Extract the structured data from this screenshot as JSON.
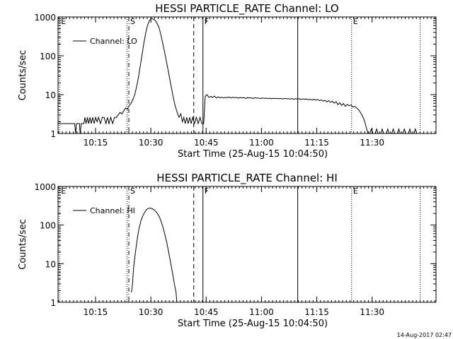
{
  "chart_data": [
    {
      "type": "line",
      "title": "HESSI PARTICLE_RATE Channel: LO",
      "xlabel": "Start Time (25-Aug-15 10:04:50)",
      "ylabel": "Counts/sec",
      "yscale": "log",
      "ylim": [
        1,
        1000
      ],
      "xlim_minutes": [
        0,
        102.5
      ],
      "x_ticks": [
        {
          "min": 10.17,
          "label": "10:15"
        },
        {
          "min": 25.17,
          "label": "10:30"
        },
        {
          "min": 40.17,
          "label": "10:45"
        },
        {
          "min": 55.17,
          "label": "11:00"
        },
        {
          "min": 70.17,
          "label": "11:15"
        },
        {
          "min": 85.17,
          "label": "11:30"
        }
      ],
      "y_ticks": [
        {
          "v": 1,
          "label": "1"
        },
        {
          "v": 10,
          "label": "10"
        },
        {
          "v": 100,
          "label": "100"
        },
        {
          "v": 1000,
          "label": "1000"
        }
      ],
      "markers": [
        {
          "min": 0.4,
          "style": "dotted",
          "label": "E"
        },
        {
          "min": 18.7,
          "style": "dotted",
          "label": ""
        },
        {
          "min": 19.2,
          "style": "dashdot",
          "label": "S"
        },
        {
          "min": 36.8,
          "style": "dashed",
          "label": ""
        },
        {
          "min": 39.3,
          "style": "solid",
          "label": "F"
        },
        {
          "min": 65.0,
          "style": "solid",
          "label": ""
        },
        {
          "min": 79.6,
          "style": "dotted",
          "label": "E"
        },
        {
          "min": 98.2,
          "style": "dotted",
          "label": ""
        }
      ],
      "legend": {
        "label": "Channel: LO",
        "position": "top-left"
      },
      "series": [
        {
          "values": [
            [
              0.0,
              1.8
            ],
            [
              4.5,
              1.8
            ],
            [
              4.8,
              1.0
            ],
            [
              5.0,
              1.8
            ],
            [
              5.8,
              1.8
            ],
            [
              6.0,
              1.0
            ],
            [
              6.3,
              1.8
            ],
            [
              7.0,
              1.8
            ],
            [
              7.3,
              2.6
            ],
            [
              7.6,
              1.8
            ],
            [
              8.0,
              2.6
            ],
            [
              8.3,
              1.8
            ],
            [
              8.7,
              2.6
            ],
            [
              9.0,
              1.8
            ],
            [
              9.4,
              2.6
            ],
            [
              9.8,
              1.8
            ],
            [
              10.2,
              2.6
            ],
            [
              10.6,
              2.0
            ],
            [
              11.0,
              2.6
            ],
            [
              11.5,
              1.8
            ],
            [
              12.0,
              2.6
            ],
            [
              12.5,
              2.6
            ],
            [
              13.0,
              1.8
            ],
            [
              13.4,
              2.6
            ],
            [
              13.8,
              1.8
            ],
            [
              14.3,
              2.6
            ],
            [
              14.8,
              1.8
            ],
            [
              15.3,
              2.6
            ],
            [
              15.8,
              2.6
            ],
            [
              16.3,
              3.0
            ],
            [
              16.8,
              3.5
            ],
            [
              17.3,
              3.2
            ],
            [
              17.8,
              3.8
            ],
            [
              18.3,
              4.5
            ],
            [
              18.8,
              4.2
            ],
            [
              19.3,
              5.2
            ],
            [
              19.8,
              6.0
            ],
            [
              20.3,
              7.5
            ],
            [
              20.8,
              10
            ],
            [
              21.3,
              16
            ],
            [
              21.8,
              28
            ],
            [
              22.3,
              55
            ],
            [
              22.8,
              110
            ],
            [
              23.3,
              220
            ],
            [
              23.8,
              400
            ],
            [
              24.3,
              620
            ],
            [
              24.8,
              800
            ],
            [
              25.3,
              920
            ],
            [
              25.8,
              880
            ],
            [
              26.3,
              820
            ],
            [
              26.8,
              700
            ],
            [
              27.3,
              560
            ],
            [
              27.8,
              380
            ],
            [
              28.3,
              230
            ],
            [
              28.8,
              140
            ],
            [
              29.3,
              80
            ],
            [
              29.8,
              45
            ],
            [
              30.3,
              25
            ],
            [
              30.8,
              14
            ],
            [
              31.3,
              8
            ],
            [
              31.8,
              5
            ],
            [
              32.3,
              3.5
            ],
            [
              32.8,
              2.6
            ],
            [
              33.3,
              3.2
            ],
            [
              33.7,
              2.0
            ],
            [
              34.1,
              2.6
            ],
            [
              34.5,
              1.8
            ],
            [
              34.9,
              2.6
            ],
            [
              35.3,
              1.8
            ],
            [
              35.7,
              2.6
            ],
            [
              36.1,
              1.8
            ],
            [
              36.5,
              2.6
            ],
            [
              37.0,
              1.8
            ],
            [
              37.5,
              2.6
            ],
            [
              38.0,
              1.8
            ],
            [
              38.5,
              2.6
            ],
            [
              39.0,
              1.8
            ],
            [
              39.5,
              1.8
            ],
            [
              39.9,
              9
            ],
            [
              40.4,
              10
            ],
            [
              40.9,
              8.5
            ],
            [
              41.4,
              9
            ],
            [
              41.9,
              8.5
            ],
            [
              42.4,
              9.2
            ],
            [
              42.9,
              8.2
            ],
            [
              43.4,
              8.8
            ],
            [
              43.9,
              8.3
            ],
            [
              44.4,
              8.6
            ],
            [
              44.9,
              8.2
            ],
            [
              45.4,
              8.5
            ],
            [
              45.9,
              8.4
            ],
            [
              46.4,
              8.7
            ],
            [
              46.9,
              8.2
            ],
            [
              47.4,
              8.6
            ],
            [
              47.9,
              8.3
            ],
            [
              48.4,
              8.5
            ],
            [
              48.9,
              8.1
            ],
            [
              49.4,
              8.5
            ],
            [
              49.9,
              8.2
            ],
            [
              50.4,
              8.4
            ],
            [
              50.9,
              8.0
            ],
            [
              51.4,
              8.4
            ],
            [
              51.9,
              8.2
            ],
            [
              52.4,
              8.3
            ],
            [
              52.9,
              8.0
            ],
            [
              53.4,
              8.3
            ],
            [
              53.9,
              8.1
            ],
            [
              54.4,
              8.2
            ],
            [
              54.9,
              7.9
            ],
            [
              55.4,
              8.2
            ],
            [
              55.9,
              8.0
            ],
            [
              56.4,
              8.1
            ],
            [
              56.9,
              7.9
            ],
            [
              57.4,
              8.1
            ],
            [
              57.9,
              7.8
            ],
            [
              58.4,
              8.1
            ],
            [
              58.9,
              7.9
            ],
            [
              59.4,
              8.0
            ],
            [
              59.9,
              7.8
            ],
            [
              60.4,
              8.0
            ],
            [
              60.9,
              7.7
            ],
            [
              61.4,
              8.0
            ],
            [
              61.9,
              7.8
            ],
            [
              62.4,
              7.9
            ],
            [
              62.9,
              7.7
            ],
            [
              63.4,
              7.9
            ],
            [
              63.9,
              7.6
            ],
            [
              64.4,
              7.9
            ],
            [
              64.9,
              7.7
            ],
            [
              65.4,
              7.8
            ],
            [
              65.9,
              7.5
            ],
            [
              66.4,
              7.8
            ],
            [
              66.9,
              7.6
            ],
            [
              67.4,
              7.7
            ],
            [
              67.9,
              7.4
            ],
            [
              68.4,
              7.6
            ],
            [
              68.9,
              7.3
            ],
            [
              69.4,
              7.6
            ],
            [
              69.9,
              7.2
            ],
            [
              70.4,
              7.5
            ],
            [
              70.9,
              7.0
            ],
            [
              71.4,
              7.3
            ],
            [
              71.9,
              6.8
            ],
            [
              72.4,
              7.1
            ],
            [
              72.9,
              6.5
            ],
            [
              73.4,
              7.0
            ],
            [
              73.9,
              6.3
            ],
            [
              74.4,
              6.8
            ],
            [
              74.9,
              6.0
            ],
            [
              75.4,
              6.6
            ],
            [
              75.9,
              5.5
            ],
            [
              76.4,
              6.2
            ],
            [
              76.9,
              5.3
            ],
            [
              77.4,
              5.9
            ],
            [
              77.9,
              5.0
            ],
            [
              78.4,
              5.6
            ],
            [
              78.9,
              5.2
            ],
            [
              79.4,
              5.4
            ],
            [
              79.9,
              4.8
            ],
            [
              80.4,
              5.0
            ],
            [
              80.9,
              4.6
            ],
            [
              81.4,
              4.2
            ],
            [
              81.9,
              3.6
            ],
            [
              82.4,
              3.0
            ],
            [
              82.9,
              2.4
            ],
            [
              83.3,
              1.8
            ],
            [
              83.7,
              1.3
            ],
            [
              84.1,
              1.0
            ],
            [
              84.5,
              1.0
            ],
            [
              85.0,
              1.3
            ],
            [
              85.4,
              1.0
            ],
            [
              86.0,
              1.0
            ],
            [
              86.4,
              1.3
            ],
            [
              86.8,
              1.0
            ],
            [
              87.5,
              1.0
            ],
            [
              87.9,
              1.3
            ],
            [
              88.3,
              1.0
            ],
            [
              89.0,
              1.0
            ],
            [
              89.4,
              1.3
            ],
            [
              89.8,
              1.0
            ],
            [
              90.5,
              1.0
            ],
            [
              90.9,
              1.3
            ],
            [
              91.3,
              1.0
            ],
            [
              92.0,
              1.0
            ],
            [
              92.4,
              1.3
            ],
            [
              92.8,
              1.0
            ],
            [
              93.5,
              1.0
            ],
            [
              93.9,
              1.3
            ],
            [
              94.3,
              1.0
            ],
            [
              95.0,
              1.0
            ],
            [
              95.4,
              1.3
            ],
            [
              95.8,
              1.0
            ],
            [
              96.5,
              1.0
            ],
            [
              96.9,
              1.3
            ],
            [
              97.3,
              1.0
            ],
            [
              98.5,
              1.0
            ]
          ]
        }
      ]
    },
    {
      "type": "line",
      "title": "HESSI PARTICLE_RATE Channel: HI",
      "xlabel": "Start Time (25-Aug-15 10:04:50)",
      "ylabel": "Counts/sec",
      "yscale": "log",
      "ylim": [
        1,
        1000
      ],
      "xlim_minutes": [
        0,
        102.5
      ],
      "x_ticks": [
        {
          "min": 10.17,
          "label": "10:15"
        },
        {
          "min": 25.17,
          "label": "10:30"
        },
        {
          "min": 40.17,
          "label": "10:45"
        },
        {
          "min": 55.17,
          "label": "11:00"
        },
        {
          "min": 70.17,
          "label": "11:15"
        },
        {
          "min": 85.17,
          "label": "11:30"
        }
      ],
      "y_ticks": [
        {
          "v": 1,
          "label": "1"
        },
        {
          "v": 10,
          "label": "10"
        },
        {
          "v": 100,
          "label": "100"
        },
        {
          "v": 1000,
          "label": "1000"
        }
      ],
      "markers": [
        {
          "min": 0.4,
          "style": "dotted",
          "label": "E"
        },
        {
          "min": 18.7,
          "style": "dotted",
          "label": ""
        },
        {
          "min": 19.2,
          "style": "dashdot",
          "label": "S"
        },
        {
          "min": 36.8,
          "style": "dashed",
          "label": ""
        },
        {
          "min": 39.3,
          "style": "solid",
          "label": "F"
        },
        {
          "min": 65.0,
          "style": "solid",
          "label": ""
        },
        {
          "min": 79.6,
          "style": "dotted",
          "label": "E"
        },
        {
          "min": 98.2,
          "style": "dotted",
          "label": ""
        }
      ],
      "legend": {
        "label": "Channel: HI",
        "position": "top-left"
      },
      "series": [
        {
          "values": [
            [
              19.9,
              1.8
            ],
            [
              20.2,
              3.0
            ],
            [
              20.5,
              8
            ],
            [
              21.0,
              20
            ],
            [
              21.5,
              45
            ],
            [
              22.0,
              85
            ],
            [
              22.5,
              130
            ],
            [
              23.0,
              175
            ],
            [
              23.5,
              215
            ],
            [
              24.0,
              250
            ],
            [
              24.5,
              270
            ],
            [
              25.0,
              275
            ],
            [
              25.5,
              265
            ],
            [
              26.0,
              250
            ],
            [
              26.5,
              225
            ],
            [
              27.0,
              195
            ],
            [
              27.5,
              160
            ],
            [
              28.0,
              120
            ],
            [
              28.5,
              85
            ],
            [
              29.0,
              55
            ],
            [
              29.5,
              35
            ],
            [
              30.0,
              20
            ],
            [
              30.5,
              11
            ],
            [
              31.0,
              6
            ],
            [
              31.5,
              3.2
            ],
            [
              32.0,
              1.8
            ],
            [
              32.2,
              1.0
            ]
          ]
        }
      ]
    }
  ],
  "footer": {
    "timestamp": "14-Aug-2017 02:47"
  }
}
